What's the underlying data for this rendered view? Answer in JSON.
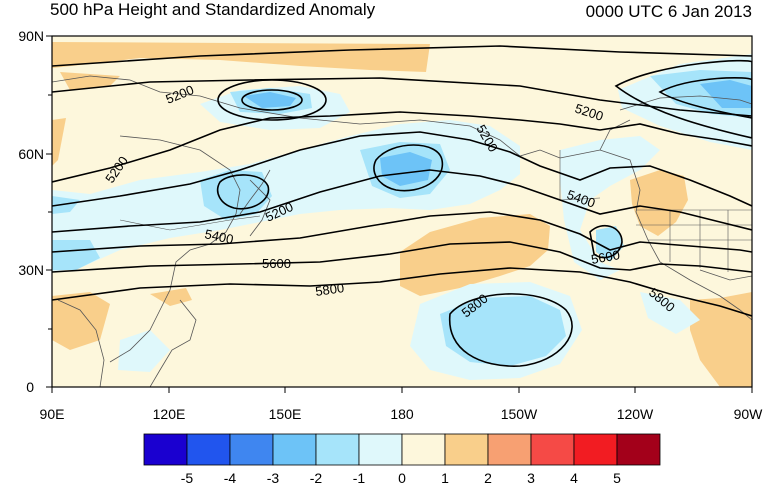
{
  "title": "500 hPa Height and Standardized Anomaly",
  "valid_time": "0000 UTC 6 Jan 2013",
  "lat_labels": [
    "90N",
    "60N",
    "30N",
    "0"
  ],
  "lon_labels": [
    "90E",
    "120E",
    "150E",
    "180",
    "150W",
    "120W",
    "90W"
  ],
  "colorbar": {
    "labels": [
      "-5",
      "-4",
      "-3",
      "-2",
      "-1",
      "0",
      "1",
      "2",
      "3",
      "4",
      "5"
    ],
    "colors": [
      "#1a00d0",
      "#2155ee",
      "#3f86f0",
      "#6dc3f7",
      "#a6e4fa",
      "#dff8fb",
      "#fdf7dc",
      "#f9cf8b",
      "#f7a072",
      "#f54a46",
      "#f21c22",
      "#a3001a"
    ]
  },
  "contour_labels": [
    "5200",
    "5200",
    "5200",
    "5200",
    "5200",
    "5400",
    "5400",
    "5600",
    "5600",
    "5800",
    "5800",
    "5800"
  ],
  "colors": {
    "ocean_base": "#fdf7dc",
    "land_line": "#555555",
    "contour": "#000000"
  }
}
